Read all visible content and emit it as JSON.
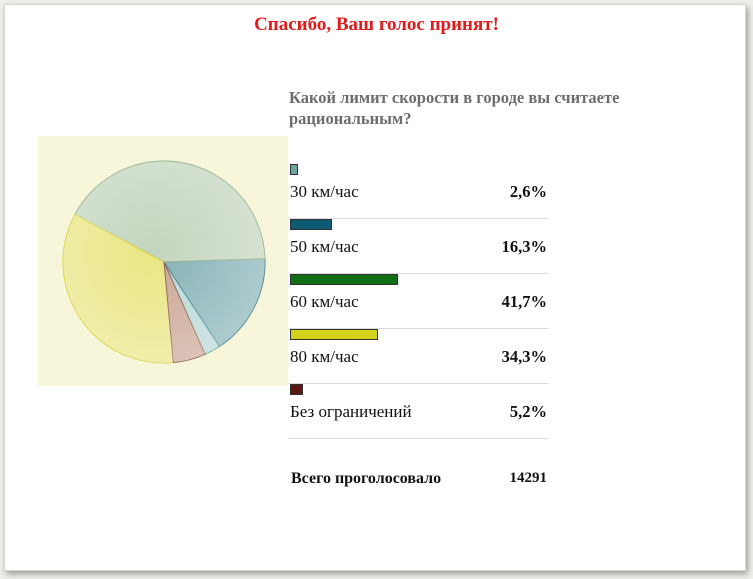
{
  "header": {
    "thanks": "Спасибо, Ваш голос принят!"
  },
  "poll": {
    "question": "Какой лимит скорости в городе вы считаете рациональным?",
    "options": [
      {
        "label": "30 км/час",
        "value": "2,6%",
        "percent": 2.6,
        "color": "#6aa6a3"
      },
      {
        "label": "50 км/час",
        "value": "16,3%",
        "percent": 16.3,
        "color": "#0d5a73"
      },
      {
        "label": "60 км/час",
        "value": "41,7%",
        "percent": 41.7,
        "color": "#0f6d12"
      },
      {
        "label": "80 км/час",
        "value": "34,3%",
        "percent": 34.3,
        "color": "#d3d31c"
      },
      {
        "label": "Без ограничений",
        "value": "5,2%",
        "percent": 5.2,
        "color": "#5c1810"
      }
    ],
    "total_label": "Всего проголосовало",
    "total_value": "14291"
  },
  "chart_data": {
    "type": "pie",
    "categories": [
      "30 км/час",
      "50 км/час",
      "60 км/час",
      "80 км/час",
      "Без ограничений"
    ],
    "values": [
      2.6,
      16.3,
      41.7,
      34.3,
      5.2
    ],
    "slice_colors": [
      "#b5d8d4",
      "#84b1b5",
      "#c3d5be",
      "#e9e683",
      "#c9a594"
    ],
    "slice_edge_colors": [
      "#5e9e9a",
      "#3f7f8a",
      "#8fae8a",
      "#d6d33c",
      "#8c5a4a"
    ],
    "background_color": "#f7f6da"
  }
}
